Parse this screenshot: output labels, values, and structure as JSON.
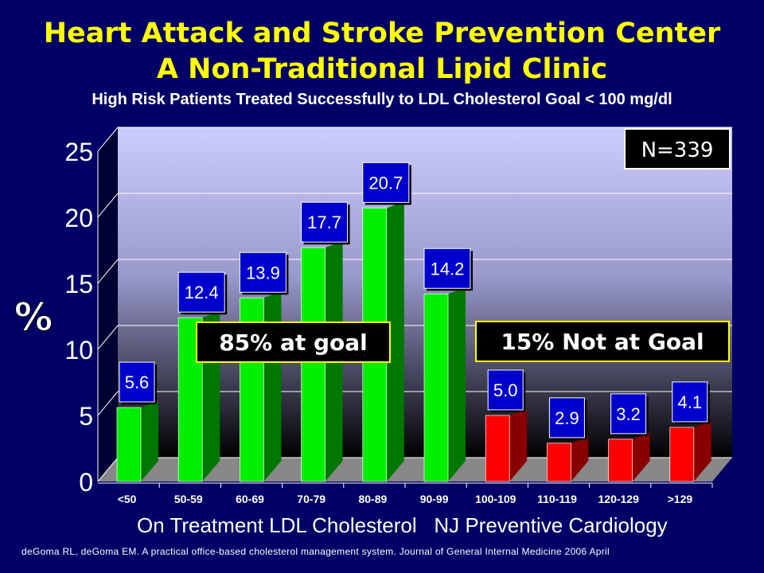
{
  "title_line1": "Heart Attack and Stroke Prevention Center",
  "title_line2": "A Non-Traditional Lipid Clinic",
  "subtitle": "High Risk Patients Treated Successfully to LDL Cholesterol Goal < 100 mg/dl",
  "x_title": "On Treatment LDL Cholesterol   NJ Preventive Cardiology",
  "citation": "deGoma RL, deGoma EM. A practical office-based cholesterol management system. Journal of General Internal Medicine 2006 April",
  "chart_data": {
    "type": "bar",
    "ylabel": "%",
    "ylim": [
      0,
      25
    ],
    "yticks": [
      "0",
      "5",
      "10",
      "15",
      "20",
      "25"
    ],
    "grid": true,
    "categories": [
      "<50",
      "50-59",
      "60-69",
      "70-79",
      "80-89",
      "90-99",
      "100-109",
      "110-119",
      "120-129",
      ">129"
    ],
    "values": [
      5.6,
      12.4,
      13.9,
      17.7,
      20.7,
      14.2,
      5.0,
      2.9,
      3.2,
      4.1
    ],
    "data_labels": [
      "5.6",
      "12.4",
      "13.9",
      "17.7",
      "20.7",
      "14.2",
      "5.0",
      "2.9",
      "3.2",
      "4.1"
    ],
    "colors": [
      "#00ee00",
      "#00ee00",
      "#00ee00",
      "#00ee00",
      "#00ee00",
      "#00ee00",
      "#ff0000",
      "#ff0000",
      "#ff0000",
      "#ff0000"
    ],
    "annotations": [
      "N=339",
      "85% at goal",
      "15% Not at Goal"
    ]
  }
}
